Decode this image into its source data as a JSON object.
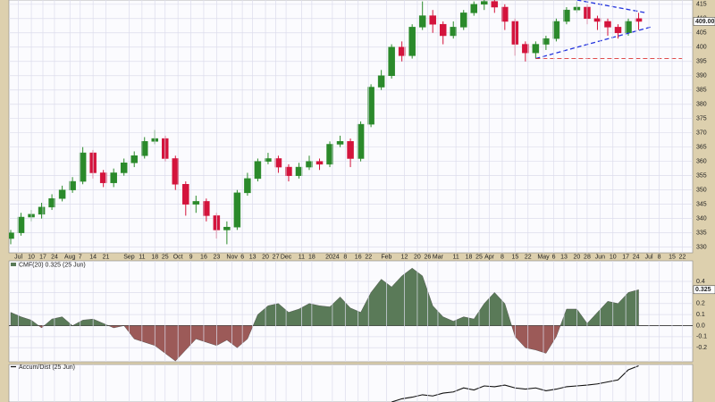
{
  "chart_data": [
    {
      "type": "candlestick",
      "x": [
        0,
        4,
        8,
        12,
        16,
        20,
        24,
        28,
        32,
        36,
        40,
        44,
        48,
        52,
        56,
        60,
        64,
        68,
        72,
        76,
        80,
        84,
        88,
        92,
        96,
        100,
        104,
        108,
        112,
        116,
        120,
        124,
        128,
        132,
        136,
        140,
        144,
        148,
        152,
        156,
        160,
        164,
        168,
        172,
        176,
        180,
        184,
        188,
        192,
        196,
        200,
        204,
        208,
        212,
        216,
        220,
        224,
        228,
        232,
        236,
        240,
        244
      ],
      "open": [
        333,
        335,
        340.5,
        341.5,
        344,
        347,
        350,
        353,
        363,
        356,
        352.5,
        356,
        359.5,
        362,
        367,
        368,
        361,
        352,
        345,
        346,
        341,
        336,
        337,
        349,
        354,
        360,
        361,
        358,
        355,
        358,
        360,
        359,
        366,
        367,
        361,
        373,
        386,
        390,
        400,
        397,
        407,
        411,
        408,
        404,
        407,
        412,
        415,
        416,
        414,
        409,
        401,
        398,
        401,
        403,
        409,
        413,
        414,
        410,
        409,
        407,
        405,
        410
      ],
      "high": [
        336,
        342,
        343,
        345.5,
        348.5,
        351.5,
        354.5,
        365,
        364,
        357,
        357.5,
        361,
        363.5,
        368.5,
        371,
        369,
        362,
        353,
        348,
        347,
        342,
        339,
        350,
        356,
        361,
        363,
        362,
        359,
        359.5,
        362,
        361,
        367,
        369,
        368,
        374,
        387,
        392,
        401,
        402,
        408,
        416,
        413,
        409,
        409,
        413,
        416,
        417,
        417,
        415,
        410,
        402,
        402,
        404,
        410,
        414,
        416,
        415,
        411,
        410,
        408,
        410,
        412
      ],
      "low": [
        331,
        334,
        339,
        340,
        343,
        346,
        349,
        352,
        354,
        351,
        351,
        355,
        358,
        361,
        366,
        360,
        350,
        341,
        342,
        339,
        333,
        331,
        336,
        348,
        353,
        359,
        356,
        353,
        354,
        357,
        357,
        358,
        365,
        358,
        360,
        372,
        385,
        389,
        395,
        396,
        406,
        405,
        401,
        403,
        406,
        411,
        413,
        412,
        406,
        397,
        395,
        396,
        399,
        402,
        408,
        412,
        408,
        406,
        404,
        403,
        404,
        406
      ],
      "close": [
        335,
        340.5,
        341.5,
        344,
        347,
        350,
        353,
        363,
        356,
        352.5,
        356,
        359.5,
        362,
        367,
        368,
        361,
        352,
        345,
        346,
        341,
        336,
        337,
        349,
        354,
        360,
        361,
        358,
        355,
        358,
        360,
        359,
        366,
        367,
        361,
        373,
        386,
        390,
        400,
        397,
        407,
        411,
        408,
        404,
        407,
        412,
        415,
        416,
        414,
        409,
        401,
        398,
        401,
        403,
        409,
        413,
        414,
        410,
        409,
        407,
        405,
        409,
        409
      ],
      "up_color": "#2b8a2b",
      "down_color": "#d4143c",
      "xlim": [
        -0.7,
        265
      ],
      "ylim": [
        328,
        416.5
      ],
      "yticks": [
        330,
        335,
        340,
        345,
        350,
        355,
        360,
        365,
        370,
        375,
        380,
        385,
        390,
        395,
        400,
        405,
        410,
        415
      ],
      "xticks": [
        {
          "value": 3,
          "label": "Jul"
        },
        {
          "value": 8,
          "label": "10"
        },
        {
          "value": 12.5,
          "label": "17"
        },
        {
          "value": 17,
          "label": "24"
        },
        {
          "value": 23,
          "label": "Aug"
        },
        {
          "value": 27,
          "label": "7"
        },
        {
          "value": 32,
          "label": "14"
        },
        {
          "value": 37,
          "label": "21"
        },
        {
          "value": 46,
          "label": "Sep"
        },
        {
          "value": 51,
          "label": "11"
        },
        {
          "value": 56,
          "label": "18"
        },
        {
          "value": 60,
          "label": "25"
        },
        {
          "value": 65,
          "label": "Oct"
        },
        {
          "value": 70,
          "label": "9"
        },
        {
          "value": 75,
          "label": "16"
        },
        {
          "value": 80,
          "label": "23"
        },
        {
          "value": 86,
          "label": "Nov"
        },
        {
          "value": 90,
          "label": "6"
        },
        {
          "value": 94,
          "label": "13"
        },
        {
          "value": 99,
          "label": "20"
        },
        {
          "value": 103,
          "label": "27"
        },
        {
          "value": 107,
          "label": "Dec"
        },
        {
          "value": 113,
          "label": "11"
        },
        {
          "value": 117,
          "label": "18"
        },
        {
          "value": 125,
          "label": "2024"
        },
        {
          "value": 130,
          "label": "8"
        },
        {
          "value": 135,
          "label": "16"
        },
        {
          "value": 139,
          "label": "22"
        },
        {
          "value": 146,
          "label": "Feb"
        },
        {
          "value": 153,
          "label": "12"
        },
        {
          "value": 158,
          "label": "20"
        },
        {
          "value": 162,
          "label": "26"
        },
        {
          "value": 166,
          "label": "Mar"
        },
        {
          "value": 173,
          "label": "11"
        },
        {
          "value": 178,
          "label": "18"
        },
        {
          "value": 182,
          "label": "25"
        },
        {
          "value": 186,
          "label": "Apr"
        },
        {
          "value": 191,
          "label": "8"
        },
        {
          "value": 196,
          "label": "15"
        },
        {
          "value": 201,
          "label": "22"
        },
        {
          "value": 207,
          "label": "May"
        },
        {
          "value": 211,
          "label": "6"
        },
        {
          "value": 215,
          "label": "13"
        },
        {
          "value": 220,
          "label": "20"
        },
        {
          "value": 224,
          "label": "28"
        },
        {
          "value": 229,
          "label": "Jun"
        },
        {
          "value": 234,
          "label": "10"
        },
        {
          "value": 239,
          "label": "17"
        },
        {
          "value": 243,
          "label": "24"
        },
        {
          "value": 248,
          "label": "Jul"
        },
        {
          "value": 252,
          "label": "8"
        },
        {
          "value": 257,
          "label": "15"
        },
        {
          "value": 261,
          "label": "22"
        }
      ],
      "grid": true,
      "last_label": {
        "value": 409,
        "label": "409.00"
      },
      "trendlines": [
        {
          "color": "#2233dd",
          "dash": true,
          "x": [
            204,
            248.6
          ],
          "y": [
            396,
            407
          ]
        },
        {
          "color": "#2233dd",
          "dash": true,
          "x": [
            220,
            247
          ],
          "y": [
            416.5,
            412
          ]
        },
        {
          "color": "#dd3333",
          "dash": true,
          "x": [
            204,
            261
          ],
          "y": [
            396,
            396
          ]
        }
      ]
    },
    {
      "type": "area",
      "title": "CMF(20) 0.325 (25 Jun)",
      "x": [
        0,
        4,
        8,
        12,
        16,
        20,
        24,
        28,
        32,
        36,
        40,
        44,
        48,
        52,
        56,
        60,
        64,
        68,
        72,
        76,
        80,
        84,
        88,
        92,
        96,
        100,
        104,
        108,
        112,
        116,
        120,
        124,
        128,
        132,
        136,
        140,
        144,
        148,
        152,
        156,
        160,
        164,
        168,
        172,
        176,
        180,
        184,
        188,
        192,
        196,
        200,
        204,
        208,
        212,
        216,
        220,
        224,
        228,
        232,
        236,
        240,
        244
      ],
      "values": [
        0.12,
        0.08,
        0.05,
        -0.02,
        0.06,
        0.08,
        0.0,
        0.05,
        0.06,
        0.02,
        -0.02,
        0.0,
        -0.12,
        -0.15,
        -0.18,
        -0.25,
        -0.32,
        -0.22,
        -0.12,
        -0.15,
        -0.18,
        -0.13,
        -0.2,
        -0.12,
        0.1,
        0.18,
        0.2,
        0.12,
        0.15,
        0.2,
        0.18,
        0.17,
        0.26,
        0.16,
        0.12,
        0.3,
        0.42,
        0.35,
        0.45,
        0.52,
        0.45,
        0.18,
        0.08,
        0.04,
        0.08,
        0.06,
        0.2,
        0.3,
        0.2,
        -0.1,
        -0.2,
        -0.22,
        -0.25,
        -0.1,
        0.15,
        0.15,
        0.02,
        0.12,
        0.22,
        0.2,
        0.3,
        0.325
      ],
      "pos_color": "#5a7a58",
      "neg_color": "#9c5a58",
      "ylim": [
        -0.327,
        0.586
      ],
      "yticks": [
        -0.2,
        -0.1,
        {
          "value": 0,
          "label": "0.0"
        },
        0.1,
        0.2,
        0.3,
        0.4
      ],
      "last_label": {
        "value": 0.325,
        "label": "0.325"
      }
    },
    {
      "type": "line",
      "title": "Accum/Dist (25 Jun)",
      "x": [
        148,
        152,
        156,
        160,
        164,
        168,
        172,
        176,
        180,
        184,
        188,
        192,
        196,
        200,
        204,
        208,
        212,
        216,
        220,
        224,
        228,
        232,
        236,
        240,
        244
      ],
      "values": [
        0,
        8,
        12,
        18,
        15,
        22,
        25,
        35,
        30,
        40,
        38,
        42,
        35,
        32,
        35,
        28,
        32,
        38,
        40,
        42,
        45,
        50,
        55,
        80,
        90
      ],
      "color": "#111111",
      "ylim": [
        0,
        100
      ]
    }
  ]
}
